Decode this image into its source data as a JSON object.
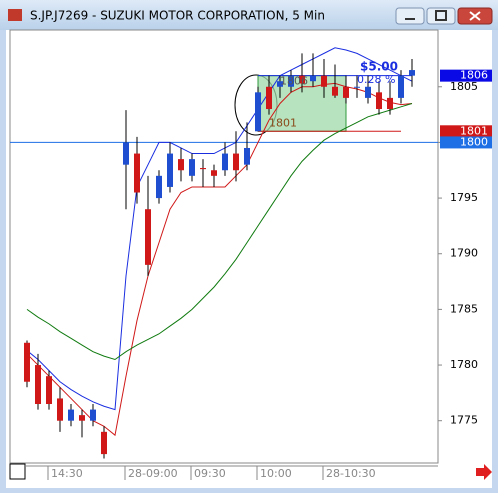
{
  "window_title": "S.JP.J7269 - SUZUKI MOTOR CORPORATION, 5 Min",
  "chart_data": {
    "type": "candlestick",
    "categories": [
      null,
      null,
      "14:30",
      null,
      null,
      null,
      null,
      null,
      null,
      "28-09:00",
      null,
      null,
      null,
      null,
      null,
      "09:30",
      null,
      null,
      null,
      null,
      null,
      "10:00",
      null,
      null,
      null,
      null,
      null,
      "28-10:30",
      null,
      null,
      null,
      null,
      null,
      null,
      null,
      null
    ],
    "open": [
      1782,
      1780,
      1779,
      1777,
      1775,
      1775.5,
      1775,
      1774,
      null,
      1798,
      1799,
      1794,
      1795,
      1796,
      1798.5,
      1797,
      1797.7,
      1797.5,
      1797.5,
      1799,
      1798,
      1801,
      1805,
      1805,
      1805,
      1806,
      1805.5,
      1806,
      1805,
      1805,
      1805,
      1804,
      1804.5,
      1804,
      1804,
      1806
    ],
    "high": [
      1782.2,
      1781,
      1779.5,
      1778,
      1776.5,
      1776,
      1776.5,
      1774.5,
      null,
      1802.9,
      1800.5,
      1797,
      1797.5,
      1800,
      1799.5,
      1799,
      1798.5,
      1798,
      1800,
      1801,
      1801.8,
      1805,
      1806,
      1806,
      1806.5,
      1808,
      1808,
      1807.5,
      1807,
      1806,
      1806,
      1806,
      1805.5,
      1805.5,
      1806.5,
      1807.5
    ],
    "low": [
      1778,
      1776,
      1776,
      1774,
      1774.5,
      1773.5,
      1774.5,
      1771.6,
      null,
      1794,
      1794.5,
      1788,
      1794.5,
      1795.5,
      1796.5,
      1796.5,
      1796,
      1796,
      1797,
      1796.5,
      1797.5,
      1801,
      1802.5,
      1804,
      1804.5,
      1804.5,
      1805,
      1804,
      1804,
      1803.5,
      1804,
      1803.5,
      1802.5,
      1802.5,
      1803.5,
      1805
    ],
    "close": [
      1778.5,
      1776.5,
      1776.5,
      1775,
      1776,
      1775,
      1776,
      1772,
      null,
      1800,
      1795.5,
      1789,
      1797,
      1799,
      1797.5,
      1798.5,
      1797.6,
      1797,
      1799,
      1797.5,
      1799.5,
      1804.5,
      1803,
      1805.5,
      1806,
      1805.3,
      1806,
      1805,
      1804.2,
      1804,
      1805,
      1805,
      1803,
      1803,
      1806,
      1806.5
    ],
    "up_color": "#1f4fd0",
    "down_color": "#d01818",
    "lines": [
      {
        "color": "#1a2ee0",
        "values": [
          1781.3,
          1780.5,
          1779.5,
          1778.5,
          1777.8,
          1777.2,
          1776.7,
          1776.3,
          1776,
          1788,
          1796,
          1798,
          1800,
          1800,
          1799.5,
          1799,
          1799,
          1799,
          1799.5,
          1800,
          1801.5,
          1803,
          1804.5,
          1806,
          1806.5,
          1807,
          1807.5,
          1808,
          1808.5,
          1808.3,
          1808,
          1807.5,
          1807,
          1806.5,
          1806,
          1805.5
        ]
      },
      {
        "color": "#d01818",
        "values": [
          1781,
          1780,
          1779,
          1778,
          1777,
          1776,
          1775,
          1774.5,
          1773.7,
          1779,
          1784,
          1788,
          1791,
          1794,
          1795.5,
          1796,
          1796,
          1796,
          1796,
          1797,
          1798,
          1800,
          1802,
          1803.5,
          1804.5,
          1805,
          1805,
          1805.2,
          1805.3,
          1805,
          1804.8,
          1804.5,
          1804,
          1803.6,
          1803.4,
          1803.5
        ]
      },
      {
        "color": "#0f7a0f",
        "values": [
          1785,
          1784.3,
          1783.7,
          1783,
          1782.4,
          1781.8,
          1781.2,
          1780.8,
          1780.5,
          1781.2,
          1781.8,
          1782.3,
          1782.8,
          1783.5,
          1784.2,
          1785,
          1786,
          1787,
          1788.2,
          1789.5,
          1791,
          1792.5,
          1794,
          1795.5,
          1797,
          1798.3,
          1799.3,
          1800.2,
          1800.8,
          1801.3,
          1801.8,
          1802.3,
          1802.6,
          1802.9,
          1803.2,
          1803.5
        ]
      }
    ],
    "ylim": [
      1771.2,
      1810.1
    ],
    "yticks": [
      1775,
      1780,
      1785,
      1790,
      1795,
      1800,
      1805
    ],
    "price_tags": [
      {
        "value": 1806,
        "color": "#0a0ae6"
      },
      {
        "value": 1801,
        "color": "#d01818"
      },
      {
        "value": 1800,
        "color": "#1e6ee6"
      }
    ],
    "annotations": {
      "box_high": "1806",
      "box_low": "1801",
      "amount": "$5.00",
      "percent": "0.28 %"
    }
  }
}
